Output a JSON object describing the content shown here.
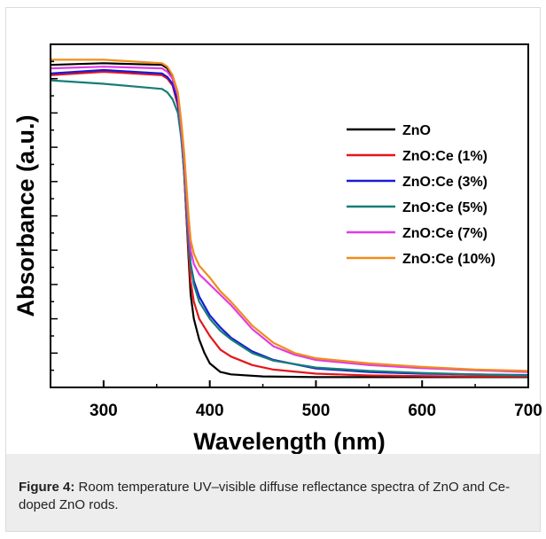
{
  "caption": {
    "label": "Figure 4:",
    "text": "Room temperature UV–visible diffuse reflectance spectra of ZnO and Ce-doped ZnO rods."
  },
  "chart_data": {
    "type": "line",
    "title": "",
    "xlabel": "Wavelength (nm)",
    "ylabel": "Absorbance (a.u.)",
    "xlim": [
      250,
      700
    ],
    "ylim": [
      0,
      1
    ],
    "x_ticks": [
      300,
      400,
      500,
      600,
      700
    ],
    "y_tick_labels_shown": false,
    "legend_position": "middle-right",
    "grid": false,
    "series": [
      {
        "name": "ZnO",
        "color": "#000000",
        "x": [
          250,
          300,
          355,
          360,
          365,
          370,
          373,
          376,
          378,
          380,
          382,
          385,
          390,
          395,
          400,
          410,
          420,
          450,
          500,
          550,
          600,
          650,
          700
        ],
        "y": [
          0.94,
          0.945,
          0.94,
          0.93,
          0.9,
          0.84,
          0.75,
          0.62,
          0.5,
          0.38,
          0.27,
          0.2,
          0.14,
          0.1,
          0.07,
          0.045,
          0.038,
          0.032,
          0.03,
          0.03,
          0.03,
          0.03,
          0.03
        ]
      },
      {
        "name": "ZnO:Ce (1%)",
        "color": "#e3171b",
        "x": [
          250,
          300,
          355,
          360,
          365,
          370,
          373,
          376,
          378,
          380,
          382,
          385,
          390,
          400,
          410,
          420,
          440,
          460,
          500,
          550,
          600,
          650,
          700
        ],
        "y": [
          0.91,
          0.92,
          0.91,
          0.9,
          0.88,
          0.82,
          0.74,
          0.62,
          0.5,
          0.4,
          0.31,
          0.25,
          0.2,
          0.15,
          0.11,
          0.09,
          0.065,
          0.052,
          0.04,
          0.035,
          0.033,
          0.032,
          0.032
        ]
      },
      {
        "name": "ZnO:Ce (3%)",
        "color": "#1a1ad6",
        "x": [
          250,
          300,
          355,
          360,
          365,
          370,
          373,
          376,
          378,
          380,
          382,
          385,
          390,
          400,
          410,
          420,
          440,
          460,
          500,
          550,
          600,
          650,
          700
        ],
        "y": [
          0.915,
          0.925,
          0.915,
          0.905,
          0.885,
          0.83,
          0.75,
          0.64,
          0.53,
          0.43,
          0.36,
          0.31,
          0.265,
          0.21,
          0.175,
          0.145,
          0.105,
          0.08,
          0.055,
          0.045,
          0.04,
          0.038,
          0.036
        ]
      },
      {
        "name": "ZnO:Ce (5%)",
        "color": "#177d78",
        "x": [
          250,
          300,
          355,
          360,
          365,
          370,
          373,
          376,
          378,
          380,
          382,
          385,
          390,
          400,
          410,
          420,
          440,
          460,
          500,
          550,
          600,
          650,
          700
        ],
        "y": [
          0.895,
          0.885,
          0.87,
          0.86,
          0.84,
          0.8,
          0.73,
          0.63,
          0.52,
          0.43,
          0.36,
          0.3,
          0.25,
          0.2,
          0.165,
          0.14,
          0.1,
          0.078,
          0.058,
          0.048,
          0.042,
          0.038,
          0.035
        ]
      },
      {
        "name": "ZnO:Ce (7%)",
        "color": "#e23be6",
        "x": [
          250,
          300,
          355,
          360,
          365,
          370,
          373,
          376,
          378,
          380,
          382,
          385,
          390,
          400,
          410,
          420,
          440,
          460,
          480,
          500,
          550,
          600,
          650,
          700
        ],
        "y": [
          0.93,
          0.935,
          0.93,
          0.92,
          0.9,
          0.85,
          0.76,
          0.66,
          0.56,
          0.47,
          0.4,
          0.36,
          0.33,
          0.3,
          0.27,
          0.24,
          0.17,
          0.12,
          0.095,
          0.08,
          0.065,
          0.056,
          0.05,
          0.045
        ]
      },
      {
        "name": "ZnO:Ce (10%)",
        "color": "#f08c1a",
        "x": [
          250,
          300,
          355,
          360,
          365,
          370,
          373,
          376,
          378,
          380,
          382,
          385,
          390,
          400,
          410,
          420,
          440,
          460,
          480,
          500,
          550,
          600,
          650,
          700
        ],
        "y": [
          0.955,
          0.955,
          0.945,
          0.935,
          0.91,
          0.86,
          0.78,
          0.68,
          0.59,
          0.5,
          0.43,
          0.39,
          0.355,
          0.32,
          0.28,
          0.25,
          0.18,
          0.13,
          0.1,
          0.085,
          0.07,
          0.06,
          0.052,
          0.048
        ]
      }
    ]
  }
}
